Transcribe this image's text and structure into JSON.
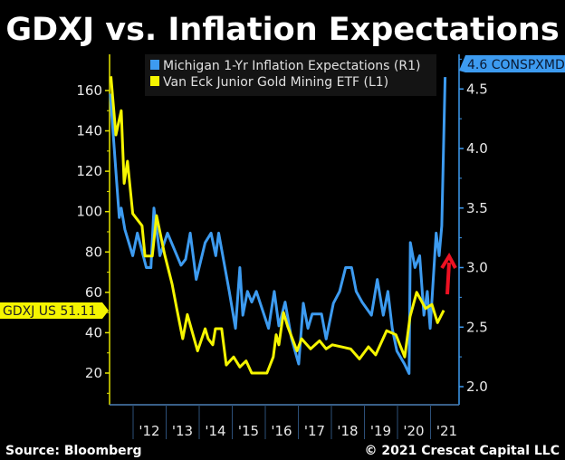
{
  "chart_data": {
    "type": "line",
    "title": "GDXJ vs. Inflation Expectations",
    "x_tick_labels": [
      "'12",
      "'13",
      "'14",
      "'15",
      "'16",
      "'17",
      "'18",
      "'19",
      "'20",
      "'21"
    ],
    "x_ticks": [
      2012,
      2013,
      2014,
      2015,
      2016,
      2017,
      2018,
      2019,
      2020,
      2021
    ],
    "xlim": [
      2011.3,
      2021.7
    ],
    "left_axis": {
      "ylim": [
        4,
        178
      ],
      "ticks": [
        20,
        40,
        60,
        80,
        100,
        120,
        140,
        160
      ],
      "color": "#e5e500"
    },
    "right_axis": {
      "ylim": [
        1.85,
        4.8
      ],
      "ticks": [
        "2.0",
        "2.5",
        "3.0",
        "3.5",
        "4.0",
        "4.5"
      ],
      "color": "#3d9bf0"
    },
    "grid": false,
    "legend_position": "top",
    "series": [
      {
        "name": "Michigan 1-Yr Inflation Expectations (R1)",
        "axis": "right",
        "color": "#3d9bf0",
        "last_value_label": "4.6 CONSPXMD",
        "x": [
          2011.31,
          2011.58,
          2011.64,
          2011.75,
          2011.99,
          2012.13,
          2012.4,
          2012.54,
          2012.63,
          2012.81,
          2013.04,
          2013.45,
          2013.59,
          2013.73,
          2013.91,
          2014.18,
          2014.36,
          2014.5,
          2014.59,
          2014.91,
          2015.1,
          2015.23,
          2015.32,
          2015.46,
          2015.59,
          2015.73,
          2016.1,
          2016.27,
          2016.41,
          2016.6,
          2016.79,
          2017.01,
          2017.15,
          2017.29,
          2017.42,
          2017.7,
          2017.84,
          2018.06,
          2018.25,
          2018.43,
          2018.61,
          2018.75,
          2018.93,
          2019.21,
          2019.39,
          2019.57,
          2019.71,
          2019.84,
          2019.98,
          2020.21,
          2020.35,
          2020.39,
          2020.53,
          2020.67,
          2020.8,
          2020.9,
          2020.99,
          2021.17,
          2021.26,
          2021.34,
          2021.44
        ],
        "values": [
          4.46,
          3.42,
          3.5,
          3.32,
          3.1,
          3.29,
          3.0,
          3.0,
          3.5,
          3.1,
          3.29,
          3.02,
          3.07,
          3.29,
          2.9,
          3.21,
          3.29,
          3.1,
          3.29,
          2.8,
          2.49,
          3.0,
          2.6,
          2.8,
          2.71,
          2.8,
          2.49,
          2.8,
          2.51,
          2.71,
          2.41,
          2.19,
          2.7,
          2.49,
          2.61,
          2.61,
          2.4,
          2.7,
          2.8,
          3.0,
          3.0,
          2.8,
          2.71,
          2.6,
          2.9,
          2.6,
          2.8,
          2.49,
          2.3,
          2.19,
          2.11,
          3.21,
          3.0,
          3.1,
          2.6,
          2.8,
          2.49,
          3.29,
          3.1,
          3.35,
          4.6
        ]
      },
      {
        "name": "Van Eck Junior Gold Mining ETF (L1)",
        "axis": "left",
        "color": "#f5f500",
        "last_value_label": "GDXJ US 51.11",
        "x": [
          2011.33,
          2011.48,
          2011.64,
          2011.73,
          2011.83,
          2011.99,
          2012.27,
          2012.36,
          2012.58,
          2012.71,
          2012.95,
          2013.18,
          2013.32,
          2013.5,
          2013.64,
          2013.95,
          2014.18,
          2014.27,
          2014.41,
          2014.49,
          2014.68,
          2014.82,
          2015.04,
          2015.23,
          2015.42,
          2015.59,
          2016.05,
          2016.24,
          2016.33,
          2016.41,
          2016.55,
          2016.68,
          2016.96,
          2017.1,
          2017.37,
          2017.64,
          2017.84,
          2018.03,
          2018.58,
          2018.85,
          2019.12,
          2019.34,
          2019.67,
          2019.95,
          2020.22,
          2020.38,
          2020.58,
          2020.85,
          2021.04,
          2021.21,
          2021.4
        ],
        "values": [
          167,
          138,
          150,
          114,
          125,
          99,
          93,
          78,
          78,
          98,
          79,
          64,
          52,
          37,
          49,
          31,
          42,
          37,
          34,
          42,
          42,
          24,
          28,
          23,
          26,
          20,
          20,
          28,
          39,
          34,
          50,
          43,
          31,
          37,
          32,
          36,
          32,
          34,
          32,
          27,
          33,
          29,
          41,
          39,
          28,
          48,
          60,
          52,
          54,
          45,
          51.11
        ]
      }
    ],
    "annotations": [
      "red up arrow"
    ]
  },
  "footer": {
    "source": "Source: Bloomberg",
    "copyright": "© 2021 Crescat Capital LLC"
  }
}
